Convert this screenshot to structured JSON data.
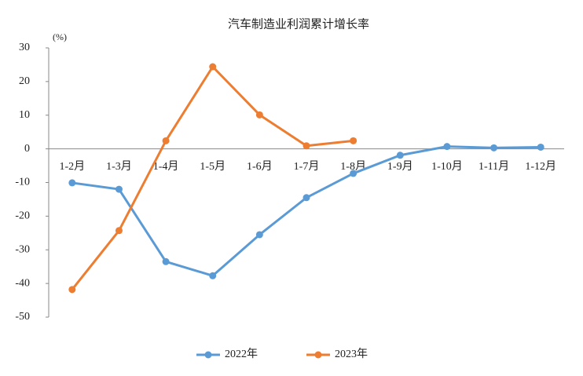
{
  "chart_data": {
    "type": "line",
    "title": "汽车制造业利润累计增长率",
    "y_label": "(%)",
    "categories": [
      "1-2月",
      "1-3月",
      "1-4月",
      "1-5月",
      "1-6月",
      "1-7月",
      "1-8月",
      "1-9月",
      "1-10月",
      "1-11月",
      "1-12月"
    ],
    "series": [
      {
        "name": "2022年",
        "color": "#5b9bd5",
        "values": [
          -10.1,
          -12,
          -33.5,
          -37.7,
          -25.5,
          -14.5,
          -7.3,
          -1.9,
          0.7,
          0.3,
          0.5
        ]
      },
      {
        "name": "2023年",
        "color": "#ed7d31",
        "values": [
          -41.8,
          -24.3,
          2.4,
          24.4,
          10.1,
          0.9,
          2.4,
          null,
          null,
          null,
          null
        ]
      }
    ],
    "ylim": [
      -50,
      30
    ],
    "yticks": [
      -50,
      -40,
      -30,
      -20,
      -10,
      0,
      10,
      20,
      30
    ],
    "negative_tick_color": "#c00000",
    "legend": "bottom"
  }
}
